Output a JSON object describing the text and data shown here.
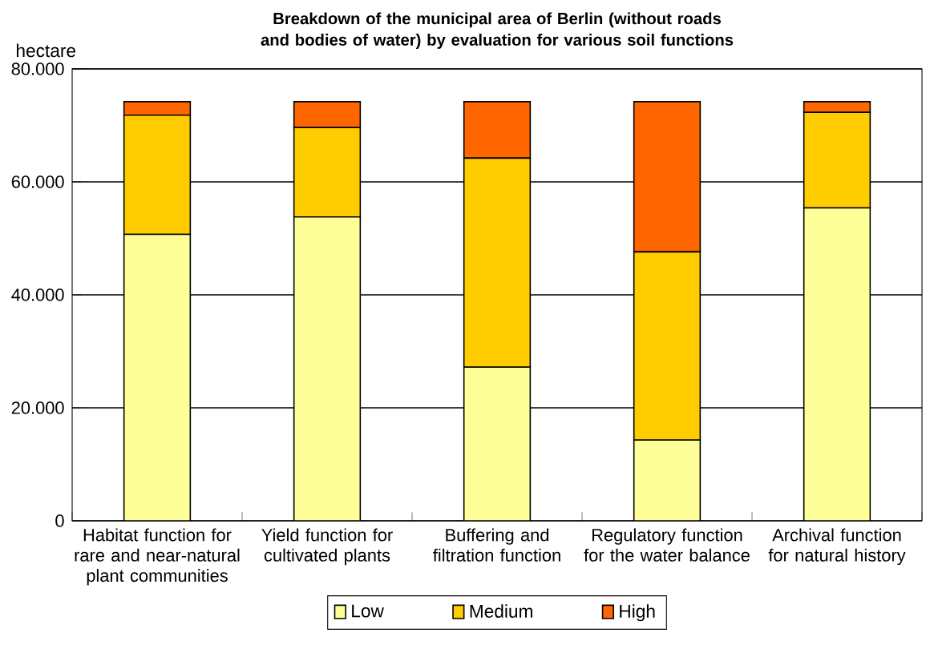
{
  "chart_data": {
    "type": "bar",
    "stacked": true,
    "title": "Breakdown of the municipal area of Berlin (without roads and bodies of water) by evaluation for various soil functions",
    "ylabel": "hectare",
    "categories": [
      "Habitat function for rare and near-natural plant communities",
      "Yield function for cultivated plants",
      "Buffering and filtration function",
      "Regulatory function for the water balance",
      "Archival function for natural history"
    ],
    "series": [
      {
        "name": "Low",
        "color": "#ffff99",
        "values": [
          50700,
          53800,
          27200,
          14300,
          55400
        ]
      },
      {
        "name": "Medium",
        "color": "#ffcc00",
        "values": [
          21100,
          15800,
          37000,
          33300,
          16900
        ]
      },
      {
        "name": "High",
        "color": "#ff6600",
        "values": [
          2400,
          4600,
          10000,
          26600,
          1900
        ]
      }
    ],
    "ylim": [
      0,
      80000
    ],
    "yticks": [
      {
        "value": 0,
        "label": "0"
      },
      {
        "value": 20000,
        "label": "20.000"
      },
      {
        "value": 40000,
        "label": "40.000"
      },
      {
        "value": 60000,
        "label": "60.000"
      },
      {
        "value": 80000,
        "label": "80.000"
      }
    ],
    "grid": "y",
    "legend": "bottom"
  }
}
